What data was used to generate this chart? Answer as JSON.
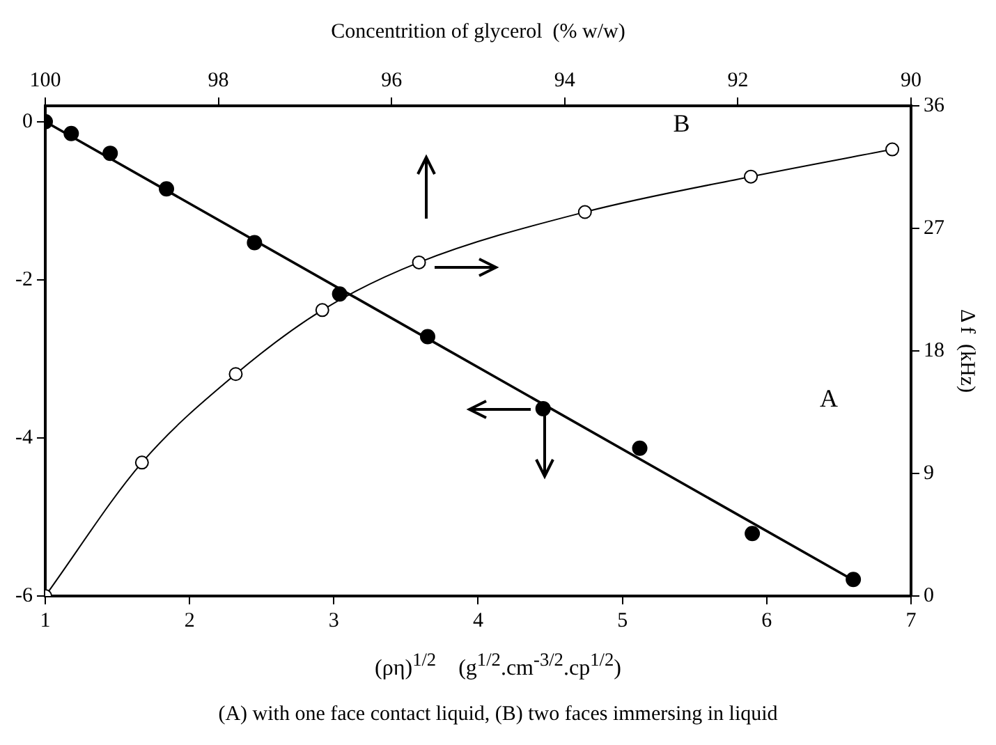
{
  "chart_data": {
    "type": "scatter",
    "x2label": "Concentrition of glycerol  (% w/w)",
    "xlabel": "(ρη)$^{1/2}$    (g$^{1/2}$.cm$^{-3/2}$.cp$^{1/2}$)",
    "y2label": "Δ f  (kHz)",
    "annotations": [
      "A",
      "B",
      "(A) with one face contact liquid,    (B) two faces immersing in liquid"
    ],
    "series": [
      {
        "color": "#000000",
        "x": [
          1.0,
          1.18,
          1.45,
          1.84,
          2.45,
          3.04,
          3.65,
          4.45,
          5.12,
          5.9,
          6.6
        ],
        "values": [
          0,
          -0.15,
          -0.4,
          -0.85,
          -1.53,
          -2.18,
          -2.72,
          -3.63,
          -4.13,
          -5.21,
          -5.79
        ]
      },
      {
        "type": "line",
        "color": "#000000",
        "marker": "none",
        "x": [
          1.0,
          6.6
        ],
        "values": [
          0,
          -5.8
        ]
      },
      {
        "type": "line",
        "axis": "y2",
        "color": "#000000",
        "x": [
          1.0,
          1.67,
          2.32,
          2.92,
          3.59,
          4.74,
          5.89,
          6.87
        ],
        "values": [
          0,
          9.8,
          16.3,
          21.0,
          24.5,
          28.2,
          30.8,
          32.8
        ]
      }
    ],
    "marker": "circle",
    "line_style": "solid",
    "grid": false,
    "legend": false,
    "xlim": [
      1,
      7
    ],
    "xticks": [
      1,
      2,
      3,
      4,
      5,
      6,
      7
    ],
    "ylim": [
      -6,
      0.2
    ],
    "yticks": [
      -6,
      -4,
      -2,
      0
    ],
    "y2lim": [
      0,
      36
    ],
    "y2ticks": [
      0,
      9,
      18,
      27,
      36
    ],
    "x2lim": [
      100,
      90
    ],
    "x2ticks": [
      100,
      98,
      96,
      94,
      92,
      90
    ]
  }
}
